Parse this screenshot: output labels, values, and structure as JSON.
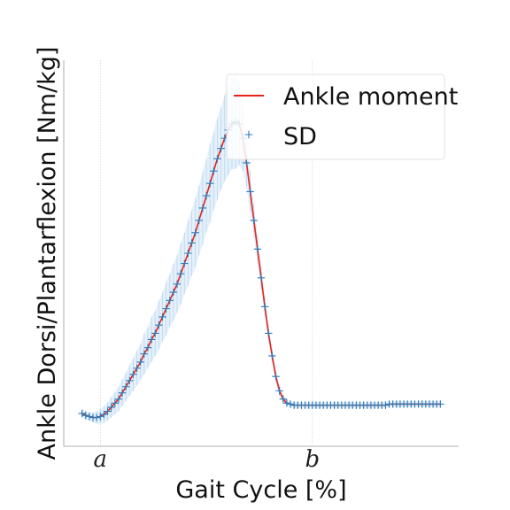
{
  "chart_data": {
    "type": "line",
    "xlabel": "Gait Cycle [%]",
    "ylabel": "Ankle Dorsi/Plantarflexion [Nm/kg]",
    "xlim": [
      -8,
      100
    ],
    "ylim": [
      -0.12,
      1.76
    ],
    "x_ticks": [
      {
        "value": 2,
        "label": "a"
      },
      {
        "value": 60,
        "label": "b"
      }
    ],
    "grid": "x",
    "legend_position": "top-right",
    "series": [
      {
        "name": "Ankle moment",
        "color": "#e8231c",
        "x": [
          -3,
          -2,
          -1,
          0,
          1,
          2,
          3,
          4,
          5,
          6,
          7,
          8,
          9,
          10,
          11,
          12,
          13,
          14,
          15,
          16,
          17,
          18,
          19,
          20,
          21,
          22,
          23,
          24,
          25,
          26,
          27,
          28,
          29,
          30,
          31,
          32,
          33,
          34,
          35,
          36,
          37,
          38,
          39,
          40,
          41,
          42,
          43,
          44,
          45,
          46,
          47,
          48,
          49,
          50,
          51,
          52,
          53,
          54,
          55,
          56,
          57,
          58,
          59,
          60,
          61,
          62,
          63,
          64,
          65,
          66,
          67,
          68,
          69,
          70,
          71,
          72,
          73,
          74,
          75,
          76,
          77,
          78,
          79,
          80,
          81,
          82,
          83,
          84,
          85,
          86,
          87,
          88,
          89,
          90,
          91,
          92,
          93,
          94,
          95
        ],
        "y": [
          0.04,
          0.03,
          0.025,
          0.02,
          0.02,
          0.025,
          0.035,
          0.05,
          0.07,
          0.09,
          0.11,
          0.14,
          0.17,
          0.2,
          0.23,
          0.26,
          0.29,
          0.33,
          0.36,
          0.4,
          0.43,
          0.47,
          0.51,
          0.55,
          0.59,
          0.63,
          0.67,
          0.72,
          0.77,
          0.82,
          0.87,
          0.92,
          0.98,
          1.04,
          1.1,
          1.16,
          1.22,
          1.28,
          1.33,
          1.38,
          1.42,
          1.45,
          1.46,
          1.45,
          1.38,
          1.26,
          1.12,
          0.98,
          0.84,
          0.7,
          0.56,
          0.43,
          0.32,
          0.22,
          0.15,
          0.11,
          0.09,
          0.085,
          0.08,
          0.08,
          0.08,
          0.08,
          0.08,
          0.08,
          0.08,
          0.08,
          0.08,
          0.08,
          0.08,
          0.08,
          0.08,
          0.08,
          0.08,
          0.08,
          0.08,
          0.08,
          0.08,
          0.08,
          0.08,
          0.08,
          0.08,
          0.08,
          0.08,
          0.08,
          0.085,
          0.085,
          0.085,
          0.085,
          0.085,
          0.085,
          0.085,
          0.085,
          0.085,
          0.085,
          0.085,
          0.085,
          0.085,
          0.085,
          0.085
        ],
        "sd": [
          0.02,
          0.02,
          0.02,
          0.025,
          0.03,
          0.035,
          0.04,
          0.045,
          0.05,
          0.055,
          0.06,
          0.065,
          0.07,
          0.075,
          0.08,
          0.085,
          0.09,
          0.1,
          0.1,
          0.11,
          0.11,
          0.12,
          0.12,
          0.13,
          0.13,
          0.14,
          0.14,
          0.15,
          0.15,
          0.16,
          0.16,
          0.17,
          0.17,
          0.18,
          0.18,
          0.19,
          0.19,
          0.2,
          0.2,
          0.21,
          0.22,
          0.22,
          0.23,
          0.2,
          0.16,
          0.12,
          0.1,
          0.08,
          0.07,
          0.06,
          0.05,
          0.04,
          0.035,
          0.03,
          0.025,
          0.02,
          0.015,
          0.015,
          0.015,
          0.015,
          0.015,
          0.015,
          0.015,
          0.015,
          0.015,
          0.015,
          0.015,
          0.015,
          0.015,
          0.015,
          0.015,
          0.015,
          0.015,
          0.015,
          0.015,
          0.015,
          0.015,
          0.015,
          0.015,
          0.015,
          0.015,
          0.015,
          0.015,
          0.015,
          0.015,
          0.015,
          0.015,
          0.015,
          0.015,
          0.015,
          0.015,
          0.015,
          0.015,
          0.015,
          0.015,
          0.015,
          0.015,
          0.015,
          0.015
        ]
      },
      {
        "name": "SD",
        "color": "#2b7bb9",
        "marker": "+"
      }
    ]
  }
}
